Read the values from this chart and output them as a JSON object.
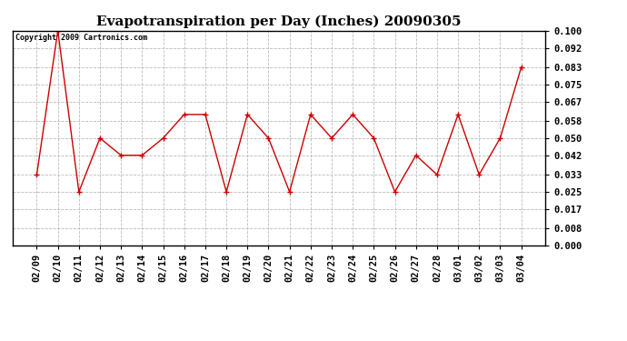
{
  "title": "Evapotranspiration per Day (Inches) 20090305",
  "copyright_text": "Copyright 2009 Cartronics.com",
  "x_labels": [
    "02/09",
    "02/10",
    "02/11",
    "02/12",
    "02/13",
    "02/14",
    "02/15",
    "02/16",
    "02/17",
    "02/18",
    "02/19",
    "02/20",
    "02/21",
    "02/22",
    "02/23",
    "02/24",
    "02/25",
    "02/26",
    "02/27",
    "02/28",
    "03/01",
    "03/02",
    "03/03",
    "03/04"
  ],
  "y_values": [
    0.033,
    0.1,
    0.025,
    0.05,
    0.042,
    0.042,
    0.05,
    0.061,
    0.061,
    0.025,
    0.061,
    0.05,
    0.025,
    0.061,
    0.05,
    0.061,
    0.05,
    0.025,
    0.042,
    0.033,
    0.061,
    0.033,
    0.05,
    0.083
  ],
  "line_color": "#cc0000",
  "marker": "+",
  "marker_size": 5,
  "ylim": [
    0.0,
    0.1
  ],
  "yticks": [
    0.0,
    0.008,
    0.017,
    0.025,
    0.033,
    0.042,
    0.05,
    0.058,
    0.067,
    0.075,
    0.083,
    0.092,
    0.1
  ],
  "background_color": "#ffffff",
  "grid_color": "#bbbbbb",
  "title_fontsize": 11,
  "copyright_fontsize": 6,
  "tick_fontsize": 7.5,
  "fig_width": 6.9,
  "fig_height": 3.75,
  "dpi": 100
}
